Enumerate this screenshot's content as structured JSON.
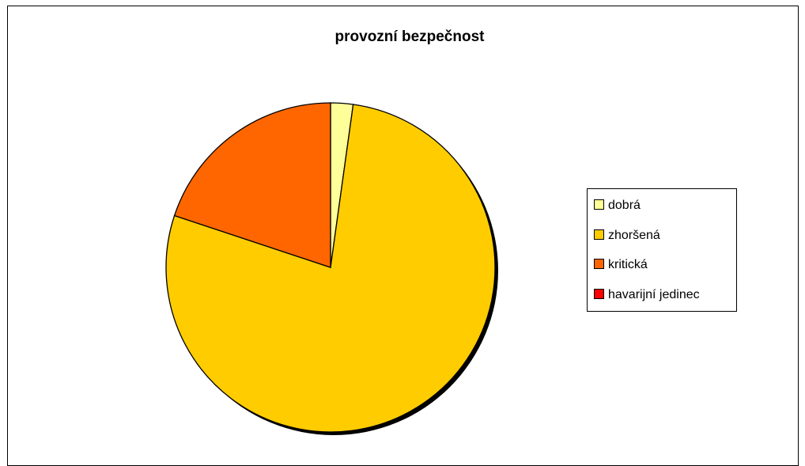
{
  "chart_data": {
    "type": "pie",
    "title": "provozní bezpečnost",
    "categories": [
      "dobrá",
      "zhoršená",
      "kritická",
      "havarijní jedinec"
    ],
    "values": [
      2.2,
      77.9,
      19.9,
      0.0
    ],
    "unit": "%",
    "colors": [
      "#FFFF99",
      "#FFCC00",
      "#FF6600",
      "#FF0000"
    ],
    "legend_position": "right",
    "start_angle_deg": 0,
    "direction": "clockwise"
  }
}
